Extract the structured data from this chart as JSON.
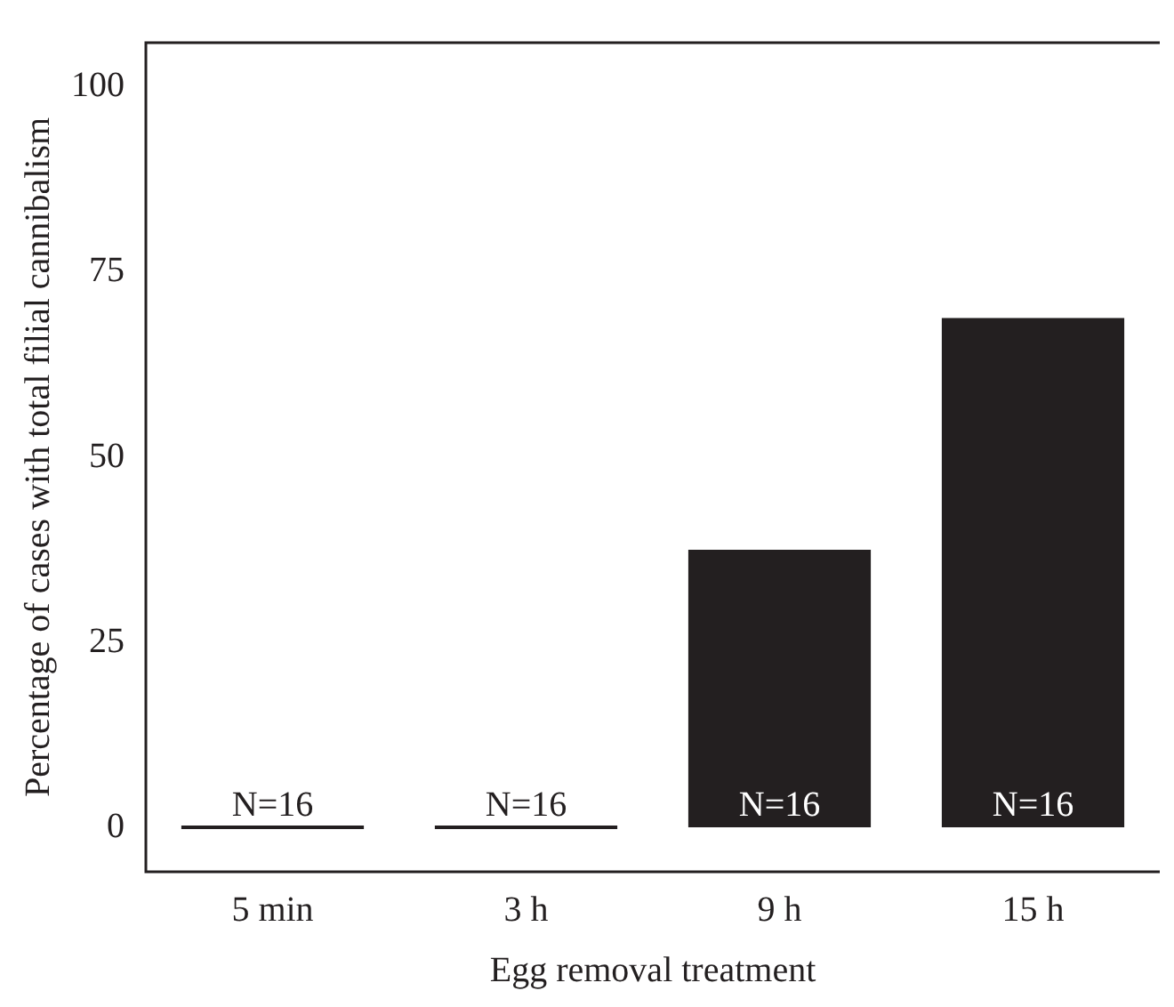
{
  "chart_data": {
    "type": "bar",
    "xlabel": "Egg removal treatment",
    "ylabel": "Percentage of cases with total filial cannibalism",
    "categories": [
      "5 min",
      "3 h",
      "9 h",
      "15 h"
    ],
    "values": [
      0,
      0,
      37.5,
      68.8
    ],
    "color": "#231f20",
    "ylim": [
      -6,
      106
    ],
    "yticks": [
      0,
      25,
      50,
      75,
      100
    ],
    "grid": false,
    "legend": false,
    "annotations": [
      {
        "text": "N=16",
        "x": "5 min",
        "y": 0
      },
      {
        "text": "N=16",
        "x": "3 h",
        "y": 0
      },
      {
        "text": "N=16",
        "x": "9 h",
        "y": 0
      },
      {
        "text": "N=16",
        "x": "15 h",
        "y": 0
      }
    ]
  }
}
